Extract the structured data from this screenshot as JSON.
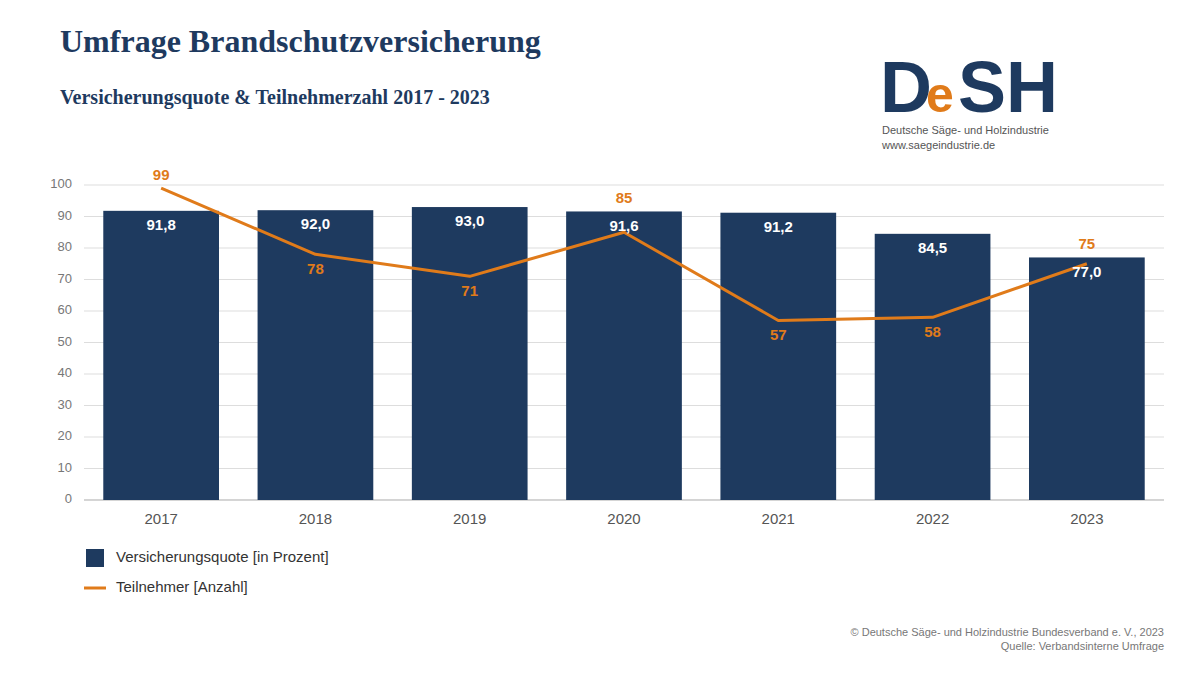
{
  "chart_data": {
    "type": "bar",
    "title": "Umfrage Brandschutzversicherung",
    "subtitle": "Versicherungsquote & Teilnehmerzahl 2017 - 2023",
    "categories": [
      "2017",
      "2018",
      "2019",
      "2020",
      "2021",
      "2022",
      "2023"
    ],
    "series": [
      {
        "name": "Versicherungsquote [in Prozent]",
        "type": "bar",
        "color": "#1e3a5f",
        "values": [
          91.8,
          92.0,
          93.0,
          91.6,
          91.2,
          84.5,
          77.0
        ],
        "value_labels": [
          "91,8",
          "92,0",
          "93,0",
          "91,6",
          "91,2",
          "84,5",
          "77,0"
        ]
      },
      {
        "name": "Teilnehmer [Anzahl]",
        "type": "line",
        "color": "#e07b1a",
        "values": [
          99,
          78,
          71,
          85,
          57,
          58,
          75
        ]
      }
    ],
    "ylim": [
      0,
      100
    ],
    "yticks": [
      0,
      10,
      20,
      30,
      40,
      50,
      60,
      70,
      80,
      90,
      100
    ],
    "grid": true,
    "legend": "bottom",
    "data_labels": true,
    "annotations": [
      "© Deutsche Säge- und Holzindustrie Bundesverband e. V., 2023\nQuelle: Verbandsinterne Umfrage",
      "D",
      "e",
      "SH",
      "Deutsche Säge- und Holzindustrie",
      "www.saegeindustrie.de"
    ]
  }
}
